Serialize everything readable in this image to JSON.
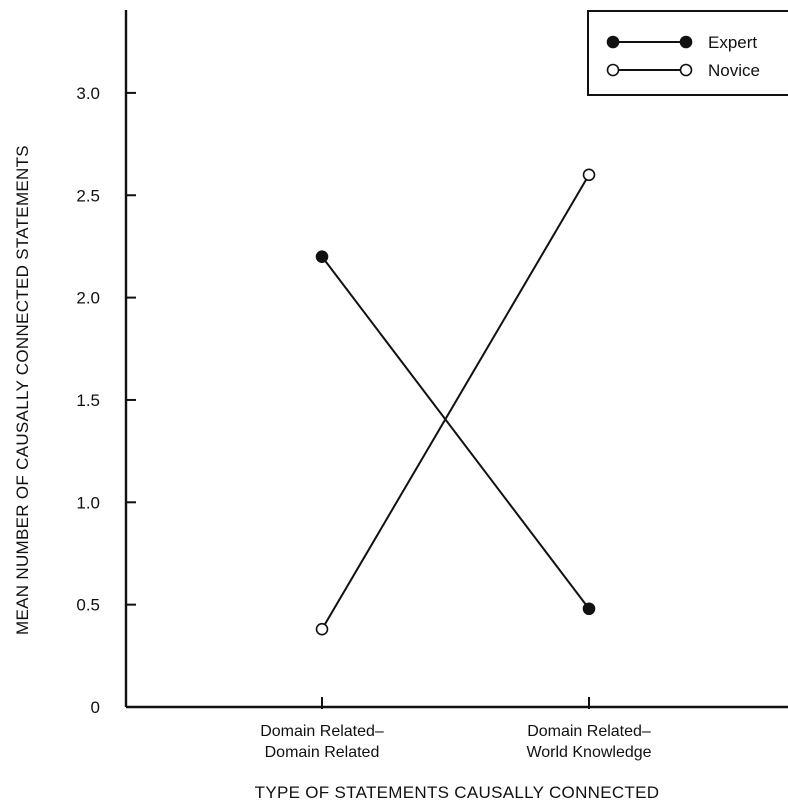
{
  "chart_data": {
    "type": "line",
    "xlabel": "TYPE OF STATEMENTS CAUSALLY CONNECTED",
    "ylabel": "MEAN NUMBER OF CAUSALLY CONNECTED STATEMENTS",
    "categories": [
      [
        "Domain Related–",
        "Domain Related"
      ],
      [
        "Domain Related–",
        "World Knowledge"
      ]
    ],
    "series": [
      {
        "name": "Expert",
        "values": [
          2.2,
          0.48
        ],
        "marker": "filled",
        "color": "#111111"
      },
      {
        "name": "Novice",
        "values": [
          0.38,
          2.6
        ],
        "marker": "open",
        "color": "#111111"
      }
    ],
    "ylim": [
      0,
      3.0
    ],
    "yticks": [
      {
        "value": 0,
        "label": "0"
      },
      {
        "value": 0.5,
        "label": "0.5"
      },
      {
        "value": 1.0,
        "label": "1.0"
      },
      {
        "value": 1.5,
        "label": "1.5"
      },
      {
        "value": 2.0,
        "label": "2.0"
      },
      {
        "value": 2.5,
        "label": "2.5"
      },
      {
        "value": 3.0,
        "label": "3.0"
      }
    ],
    "legend_position": "top-right",
    "grid": false
  }
}
